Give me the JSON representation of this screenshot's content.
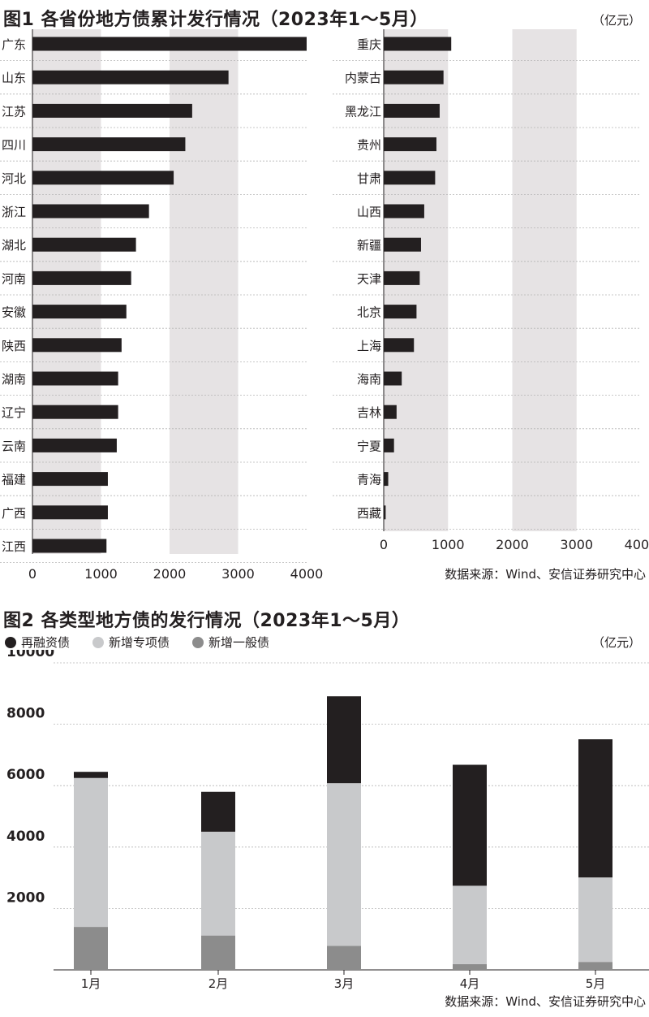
{
  "chart1": {
    "title": "图1 各省份地方债累计发行情况（2023年1～5月）",
    "unit": "（亿元）",
    "source": "数据来源：Wind、安信证券研究中心",
    "bar_color": "#231f20",
    "band_color": "#e6e3e4"
  },
  "chart2": {
    "title": "图2 各类型地方债的发行情况（2023年1～5月）",
    "unit": "（亿元）",
    "source": "数据来源：Wind、安信证券研究中心"
  },
  "chart_data": [
    {
      "type": "bar",
      "orientation": "horizontal",
      "categories": [
        "广东",
        "山东",
        "江苏",
        "四川",
        "河北",
        "浙江",
        "湖北",
        "河南",
        "安徽",
        "陕西",
        "湖南",
        "辽宁",
        "云南",
        "福建",
        "广西",
        "江西"
      ],
      "values": [
        4000,
        2860,
        2330,
        2230,
        2060,
        1700,
        1510,
        1440,
        1370,
        1300,
        1250,
        1250,
        1230,
        1100,
        1100,
        1080
      ],
      "xlim": [
        0,
        4000
      ],
      "xticks": [
        "0",
        "1000",
        "2000",
        "3000",
        "4000"
      ]
    },
    {
      "type": "bar",
      "orientation": "horizontal",
      "categories": [
        "重庆",
        "内蒙古",
        "黑龙江",
        "贵州",
        "甘肃",
        "山西",
        "新疆",
        "天津",
        "北京",
        "上海",
        "海南",
        "吉林",
        "宁夏",
        "青海",
        "西藏"
      ],
      "values": [
        1050,
        930,
        870,
        820,
        800,
        630,
        580,
        560,
        510,
        470,
        280,
        200,
        160,
        70,
        30
      ],
      "xlim": [
        0,
        4000
      ],
      "xticks": [
        "0",
        "1000",
        "2000",
        "3000",
        "4000"
      ]
    },
    {
      "type": "bar",
      "stacked": true,
      "categories": [
        "1月",
        "2月",
        "3月",
        "4月",
        "5月"
      ],
      "series": [
        {
          "name": "新增一般债",
          "color": "#8c8c8c",
          "values": [
            1400,
            1120,
            780,
            190,
            260
          ]
        },
        {
          "name": "新增专项债",
          "color": "#c8c9cb",
          "values": [
            4850,
            3380,
            5300,
            2550,
            2750
          ]
        },
        {
          "name": "再融资债",
          "color": "#231f20",
          "values": [
            200,
            1300,
            2830,
            3940,
            4500
          ]
        }
      ],
      "ylim": [
        0,
        10000
      ],
      "yticks": [
        "2000",
        "4000",
        "6000",
        "8000",
        "10000"
      ]
    }
  ]
}
